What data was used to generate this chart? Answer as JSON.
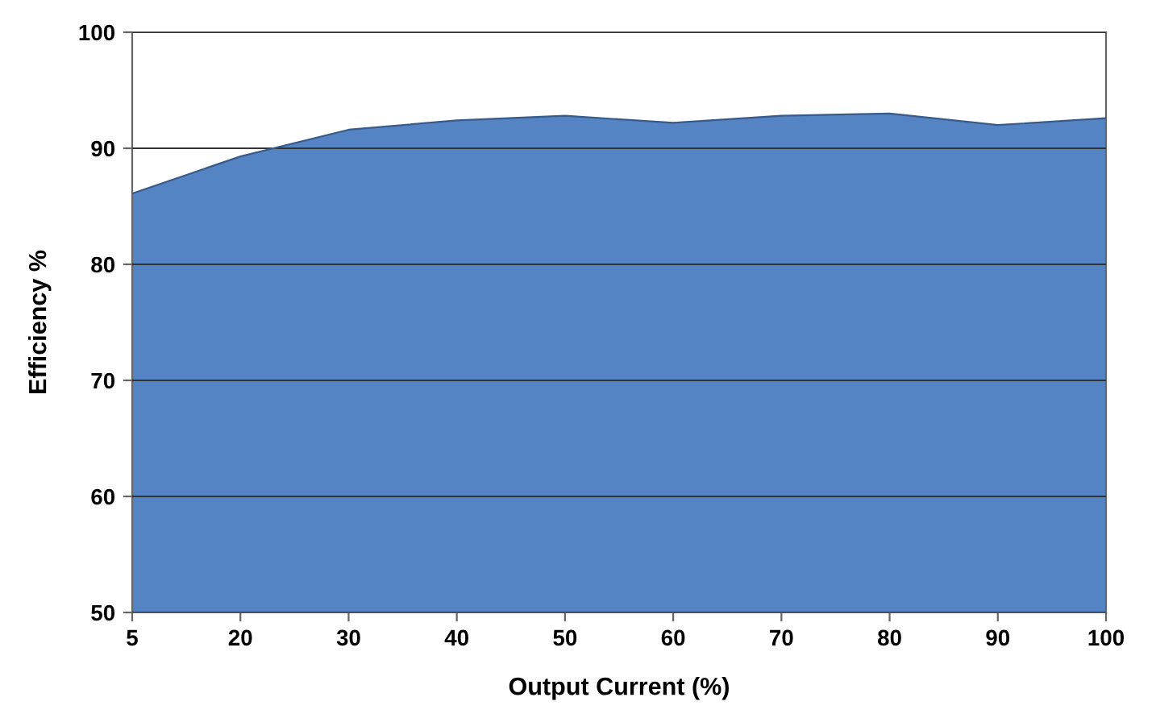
{
  "chart_data": {
    "type": "area",
    "xlabel": "Output Current (%)",
    "ylabel": "Efficiency %",
    "categories": [
      "5",
      "20",
      "30",
      "40",
      "50",
      "60",
      "70",
      "80",
      "90",
      "100"
    ],
    "series": [
      {
        "color": "#5484c4",
        "values": [
          86.1,
          89.3,
          91.6,
          92.4,
          92.8,
          92.2,
          92.8,
          93.0,
          92.0,
          92.6
        ]
      }
    ],
    "ylim": [
      50,
      100
    ],
    "yticks": [
      50,
      60,
      70,
      80,
      90,
      100
    ],
    "grid": "y"
  }
}
